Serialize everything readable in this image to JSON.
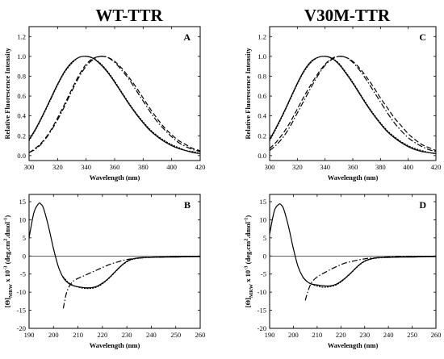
{
  "figure": {
    "titles": [
      "WT-TTR",
      "V30M-TTR"
    ]
  },
  "chart_data": [
    {
      "type": "line",
      "panel": "A",
      "xlabel": "Wavelength (nm)",
      "ylabel": "Relative Fluorescence Intensity",
      "xlim": [
        300,
        420
      ],
      "ylim": [
        -0.05,
        1.3
      ],
      "xticks": [
        300,
        320,
        340,
        360,
        380,
        400,
        420
      ],
      "yticks": [
        0.0,
        0.2,
        0.4,
        0.6,
        0.8,
        1.0,
        1.2
      ],
      "x": [
        300,
        305,
        310,
        315,
        320,
        325,
        330,
        335,
        340,
        345,
        350,
        355,
        360,
        365,
        370,
        375,
        380,
        385,
        390,
        395,
        400,
        405,
        410,
        415,
        420
      ],
      "series": [
        {
          "style": "solid",
          "values": [
            0.16,
            0.28,
            0.42,
            0.57,
            0.72,
            0.85,
            0.94,
            0.99,
            1.0,
            0.98,
            0.92,
            0.84,
            0.74,
            0.63,
            0.52,
            0.42,
            0.33,
            0.25,
            0.19,
            0.14,
            0.1,
            0.07,
            0.05,
            0.03,
            0.02
          ]
        },
        {
          "style": "dotted",
          "values": [
            0.15,
            0.27,
            0.41,
            0.56,
            0.71,
            0.84,
            0.93,
            0.99,
            1.0,
            0.98,
            0.93,
            0.85,
            0.75,
            0.64,
            0.53,
            0.43,
            0.34,
            0.26,
            0.2,
            0.15,
            0.11,
            0.08,
            0.05,
            0.04,
            0.02
          ]
        },
        {
          "style": "dashed",
          "values": [
            0.03,
            0.08,
            0.15,
            0.25,
            0.38,
            0.52,
            0.67,
            0.81,
            0.92,
            0.98,
            1.0,
            0.99,
            0.95,
            0.88,
            0.79,
            0.69,
            0.58,
            0.47,
            0.37,
            0.28,
            0.21,
            0.15,
            0.11,
            0.07,
            0.05
          ]
        },
        {
          "style": "dashdot",
          "values": [
            0.03,
            0.07,
            0.14,
            0.24,
            0.36,
            0.5,
            0.65,
            0.79,
            0.9,
            0.97,
            1.0,
            0.99,
            0.94,
            0.86,
            0.77,
            0.66,
            0.55,
            0.44,
            0.34,
            0.26,
            0.19,
            0.13,
            0.09,
            0.06,
            0.04
          ]
        }
      ]
    },
    {
      "type": "line",
      "panel": "B",
      "xlabel": "Wavelength (nm)",
      "ylabel": "[Θ]MRW x 10-3 (deg.cm2.dmol-1)",
      "xlim": [
        190,
        260
      ],
      "ylim": [
        -20,
        17
      ],
      "xticks": [
        190,
        200,
        210,
        220,
        230,
        240,
        250,
        260
      ],
      "yticks": [
        -20,
        -15,
        -10,
        -5,
        0,
        5,
        10,
        15
      ],
      "series": [
        {
          "style": "solid",
          "x": [
            190,
            192,
            194,
            195,
            196,
            198,
            200,
            202,
            204,
            206,
            208,
            210,
            212,
            214,
            216,
            218,
            220,
            222,
            224,
            226,
            228,
            230,
            232,
            235,
            240,
            245,
            250,
            255,
            260
          ],
          "values": [
            5,
            12,
            14.5,
            14.2,
            13,
            8,
            2,
            -3,
            -6,
            -7.5,
            -8.2,
            -8.5,
            -8.7,
            -8.8,
            -8.7,
            -8.3,
            -7.5,
            -6.5,
            -5.2,
            -3.8,
            -2.5,
            -1.5,
            -0.9,
            -0.5,
            -0.4,
            -0.3,
            -0.3,
            -0.2,
            -0.2
          ]
        },
        {
          "style": "dotted",
          "x": [
            204,
            206,
            208,
            210,
            212,
            214,
            216,
            218,
            220,
            222,
            224,
            226,
            228,
            230,
            232,
            235,
            240,
            245,
            250,
            255,
            260
          ],
          "values": [
            -5.8,
            -7.3,
            -8.1,
            -8.6,
            -8.9,
            -9.0,
            -8.9,
            -8.5,
            -7.7,
            -6.6,
            -5.3,
            -3.9,
            -2.6,
            -1.6,
            -1.0,
            -0.6,
            -0.4,
            -0.3,
            -0.2,
            -0.2,
            -0.1
          ]
        },
        {
          "style": "dashdot",
          "x": [
            204,
            205,
            206,
            207,
            208,
            210,
            212,
            214,
            216,
            218,
            220,
            222,
            224,
            226,
            228,
            230,
            232,
            235,
            240,
            245,
            250,
            255,
            260
          ],
          "values": [
            -14.5,
            -11,
            -9,
            -7.8,
            -7.0,
            -6.2,
            -5.6,
            -5.0,
            -4.4,
            -3.8,
            -3.2,
            -2.6,
            -2.1,
            -1.7,
            -1.3,
            -1.0,
            -0.8,
            -0.6,
            -0.4,
            -0.3,
            -0.2,
            -0.2,
            -0.1
          ]
        }
      ]
    },
    {
      "type": "line",
      "panel": "C",
      "xlabel": "Wavelength (nm)",
      "ylabel": "Relative Fluorescence Intensity",
      "xlim": [
        300,
        420
      ],
      "ylim": [
        -0.05,
        1.3
      ],
      "xticks": [
        300,
        320,
        340,
        360,
        380,
        400,
        420
      ],
      "yticks": [
        0.0,
        0.2,
        0.4,
        0.6,
        0.8,
        1.0,
        1.2
      ],
      "x": [
        300,
        305,
        310,
        315,
        320,
        325,
        330,
        335,
        340,
        345,
        350,
        355,
        360,
        365,
        370,
        375,
        380,
        385,
        390,
        395,
        400,
        405,
        410,
        415,
        420
      ],
      "series": [
        {
          "style": "solid",
          "values": [
            0.16,
            0.29,
            0.43,
            0.58,
            0.73,
            0.86,
            0.95,
            0.99,
            1.0,
            0.98,
            0.92,
            0.83,
            0.73,
            0.62,
            0.51,
            0.41,
            0.32,
            0.24,
            0.18,
            0.13,
            0.09,
            0.06,
            0.04,
            0.03,
            0.02
          ]
        },
        {
          "style": "dotted",
          "values": [
            0.15,
            0.28,
            0.42,
            0.57,
            0.72,
            0.85,
            0.94,
            0.99,
            1.0,
            0.98,
            0.93,
            0.84,
            0.74,
            0.63,
            0.52,
            0.42,
            0.33,
            0.25,
            0.19,
            0.14,
            0.1,
            0.07,
            0.05,
            0.03,
            0.02
          ]
        },
        {
          "style": "dashed",
          "values": [
            0.07,
            0.14,
            0.23,
            0.34,
            0.47,
            0.6,
            0.72,
            0.83,
            0.92,
            0.98,
            1.0,
            0.99,
            0.95,
            0.88,
            0.79,
            0.69,
            0.58,
            0.48,
            0.38,
            0.3,
            0.22,
            0.16,
            0.11,
            0.08,
            0.05
          ]
        },
        {
          "style": "dashdot",
          "values": [
            0.05,
            0.11,
            0.19,
            0.3,
            0.43,
            0.56,
            0.69,
            0.81,
            0.91,
            0.97,
            1.0,
            0.99,
            0.94,
            0.86,
            0.76,
            0.65,
            0.54,
            0.43,
            0.33,
            0.25,
            0.18,
            0.13,
            0.09,
            0.06,
            0.04
          ]
        }
      ]
    },
    {
      "type": "line",
      "panel": "D",
      "xlabel": "Wavelength (nm)",
      "ylabel": "[Θ]MRW x 10-3 (deg.cm2.dmol-1)",
      "xlim": [
        190,
        260
      ],
      "ylim": [
        -20,
        17
      ],
      "xticks": [
        190,
        200,
        210,
        220,
        230,
        240,
        250,
        260
      ],
      "yticks": [
        -20,
        -15,
        -10,
        -5,
        0,
        5,
        10,
        15
      ],
      "series": [
        {
          "style": "solid",
          "x": [
            190,
            192,
            194,
            195,
            196,
            198,
            200,
            202,
            204,
            206,
            208,
            210,
            212,
            214,
            216,
            218,
            220,
            222,
            224,
            226,
            228,
            230,
            232,
            235,
            240,
            245,
            250,
            255,
            260
          ],
          "values": [
            6,
            12.5,
            14.3,
            14.0,
            12.8,
            8,
            2,
            -3,
            -5.8,
            -7.2,
            -7.8,
            -8.0,
            -8.2,
            -8.3,
            -8.2,
            -7.8,
            -7.0,
            -6.0,
            -4.8,
            -3.5,
            -2.3,
            -1.4,
            -0.9,
            -0.5,
            -0.4,
            -0.3,
            -0.3,
            -0.2,
            -0.2
          ]
        },
        {
          "style": "dotted",
          "x": [
            204,
            206,
            208,
            210,
            212,
            214,
            216,
            218,
            220,
            222,
            224,
            226,
            228,
            230,
            232,
            235,
            240,
            245,
            250,
            255,
            260
          ],
          "values": [
            -5.9,
            -7.2,
            -7.9,
            -8.3,
            -8.6,
            -8.6,
            -8.4,
            -8.0,
            -7.2,
            -6.1,
            -4.9,
            -3.6,
            -2.4,
            -1.5,
            -1.0,
            -0.6,
            -0.4,
            -0.3,
            -0.2,
            -0.2,
            -0.1
          ]
        },
        {
          "style": "dashdot",
          "x": [
            205,
            206,
            207,
            208,
            210,
            212,
            214,
            216,
            218,
            220,
            222,
            224,
            226,
            228,
            230,
            232,
            235,
            240,
            245,
            250,
            255,
            260
          ],
          "values": [
            -12.3,
            -10,
            -8.2,
            -7.0,
            -5.8,
            -5.0,
            -4.3,
            -3.6,
            -3.0,
            -2.4,
            -1.9,
            -1.6,
            -1.3,
            -1.0,
            -0.8,
            -0.6,
            -0.5,
            -0.3,
            -0.2,
            -0.2,
            -0.1,
            -0.1
          ]
        }
      ]
    }
  ]
}
